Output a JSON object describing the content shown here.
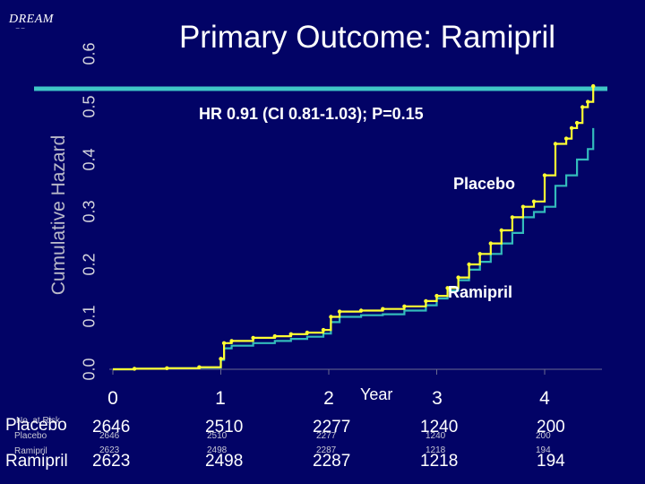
{
  "logo": {
    "text": "DREAM",
    "marks": "‾     ‾"
  },
  "chart_data": {
    "type": "line",
    "title": "Primary Outcome: Ramipril",
    "subtitle": "HR 0.91 (CI 0.81-1.03); P=0.15",
    "xlabel": "Year",
    "ylabel": "Cumulative Hazard",
    "xlim": [
      0,
      4.5
    ],
    "ylim": [
      0,
      0.6
    ],
    "x_ticks": [
      0,
      1,
      2,
      3,
      4
    ],
    "y_ticks": [
      "0.0",
      "0.1",
      "0.2",
      "0.3",
      "0.4",
      "0.5",
      "0.6"
    ],
    "reference_line_y": 0.53,
    "series": [
      {
        "name": "Placebo",
        "color": "#ffff33",
        "points": [
          [
            0,
            0
          ],
          [
            0.2,
            0.001
          ],
          [
            0.5,
            0.002
          ],
          [
            0.8,
            0.004
          ],
          [
            1.0,
            0.02
          ],
          [
            1.03,
            0.05
          ],
          [
            1.1,
            0.054
          ],
          [
            1.3,
            0.06
          ],
          [
            1.5,
            0.063
          ],
          [
            1.65,
            0.067
          ],
          [
            1.8,
            0.07
          ],
          [
            1.95,
            0.075
          ],
          [
            2.02,
            0.1
          ],
          [
            2.1,
            0.11
          ],
          [
            2.3,
            0.112
          ],
          [
            2.5,
            0.115
          ],
          [
            2.7,
            0.12
          ],
          [
            2.9,
            0.13
          ],
          [
            3.0,
            0.14
          ],
          [
            3.1,
            0.155
          ],
          [
            3.2,
            0.175
          ],
          [
            3.3,
            0.2
          ],
          [
            3.4,
            0.22
          ],
          [
            3.5,
            0.24
          ],
          [
            3.6,
            0.265
          ],
          [
            3.7,
            0.29
          ],
          [
            3.8,
            0.31
          ],
          [
            3.9,
            0.32
          ],
          [
            4.0,
            0.37
          ],
          [
            4.1,
            0.43
          ],
          [
            4.2,
            0.44
          ],
          [
            4.25,
            0.46
          ],
          [
            4.3,
            0.47
          ],
          [
            4.35,
            0.5
          ],
          [
            4.4,
            0.51
          ],
          [
            4.45,
            0.54
          ]
        ]
      },
      {
        "name": "Ramipril",
        "color": "#33bbbb",
        "points": [
          [
            0,
            0
          ],
          [
            0.2,
            0.001
          ],
          [
            0.5,
            0.002
          ],
          [
            0.8,
            0.003
          ],
          [
            1.0,
            0.018
          ],
          [
            1.03,
            0.04
          ],
          [
            1.1,
            0.045
          ],
          [
            1.3,
            0.05
          ],
          [
            1.5,
            0.054
          ],
          [
            1.65,
            0.058
          ],
          [
            1.8,
            0.062
          ],
          [
            1.95,
            0.068
          ],
          [
            2.02,
            0.09
          ],
          [
            2.1,
            0.1
          ],
          [
            2.3,
            0.103
          ],
          [
            2.5,
            0.105
          ],
          [
            2.7,
            0.112
          ],
          [
            2.9,
            0.122
          ],
          [
            3.0,
            0.135
          ],
          [
            3.1,
            0.15
          ],
          [
            3.2,
            0.17
          ],
          [
            3.3,
            0.19
          ],
          [
            3.4,
            0.205
          ],
          [
            3.5,
            0.22
          ],
          [
            3.6,
            0.24
          ],
          [
            3.7,
            0.26
          ],
          [
            3.8,
            0.29
          ],
          [
            3.9,
            0.3
          ],
          [
            4.0,
            0.31
          ],
          [
            4.1,
            0.35
          ],
          [
            4.2,
            0.37
          ],
          [
            4.3,
            0.4
          ],
          [
            4.4,
            0.42
          ],
          [
            4.45,
            0.46
          ]
        ]
      }
    ],
    "annotations": {
      "placebo_label": "Placebo",
      "ramipril_label": "Ramipril"
    },
    "at_risk": {
      "header": "No. at Risk",
      "placebo_label": "Placebo",
      "ramipril_label": "Ramipril",
      "placebo": [
        "2646",
        "2510",
        "2277",
        "1240",
        "200"
      ],
      "ramipril": [
        "2623",
        "2498",
        "2287",
        "1218",
        "194"
      ]
    }
  }
}
